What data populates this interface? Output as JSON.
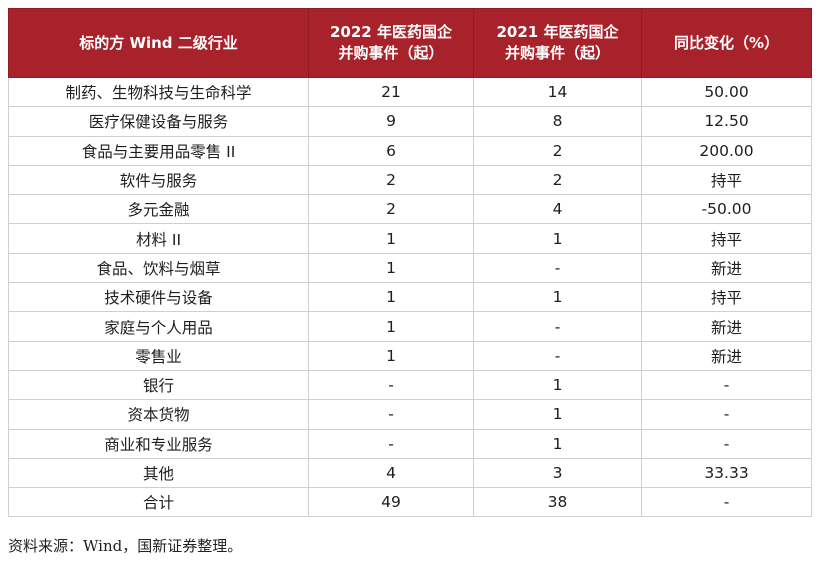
{
  "table": {
    "headers": [
      {
        "lines": [
          "标的方 Wind 二级行业"
        ]
      },
      {
        "lines": [
          "2022 年医药国企",
          "并购事件（起）"
        ]
      },
      {
        "lines": [
          "2021 年医药国企",
          "并购事件（起）"
        ]
      },
      {
        "lines": [
          "同比变化（%）"
        ]
      }
    ],
    "rows": [
      {
        "industry": "制药、生物科技与生命科学",
        "y2022": "21",
        "y2021": "14",
        "change": "50.00"
      },
      {
        "industry": "医疗保健设备与服务",
        "y2022": "9",
        "y2021": "8",
        "change": "12.50"
      },
      {
        "industry": "食品与主要用品零售 II",
        "y2022": "6",
        "y2021": "2",
        "change": "200.00"
      },
      {
        "industry": "软件与服务",
        "y2022": "2",
        "y2021": "2",
        "change": "持平"
      },
      {
        "industry": "多元金融",
        "y2022": "2",
        "y2021": "4",
        "change": "-50.00"
      },
      {
        "industry": "材料 II",
        "y2022": "1",
        "y2021": "1",
        "change": "持平"
      },
      {
        "industry": "食品、饮料与烟草",
        "y2022": "1",
        "y2021": "-",
        "change": "新进"
      },
      {
        "industry": "技术硬件与设备",
        "y2022": "1",
        "y2021": "1",
        "change": "持平"
      },
      {
        "industry": "家庭与个人用品",
        "y2022": "1",
        "y2021": "-",
        "change": "新进"
      },
      {
        "industry": "零售业",
        "y2022": "1",
        "y2021": "-",
        "change": "新进"
      },
      {
        "industry": "银行",
        "y2022": "-",
        "y2021": "1",
        "change": "-"
      },
      {
        "industry": "资本货物",
        "y2022": "-",
        "y2021": "1",
        "change": "-"
      },
      {
        "industry": "商业和专业服务",
        "y2022": "-",
        "y2021": "1",
        "change": "-"
      },
      {
        "industry": "其他",
        "y2022": "4",
        "y2021": "3",
        "change": "33.33"
      },
      {
        "industry": "合计",
        "y2022": "49",
        "y2021": "38",
        "change": "-"
      }
    ]
  },
  "source_note": "资料来源：Wind，国新证券整理。",
  "colors": {
    "header_background": "#a7222a",
    "header_text": "#ffffff",
    "grid_line": "#cfcfcf"
  }
}
